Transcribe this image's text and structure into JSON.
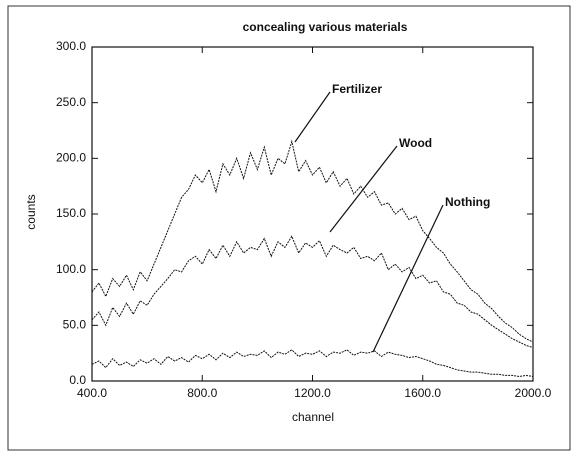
{
  "chart_data": {
    "type": "line",
    "title": "concealing various materials",
    "x_label": "channel",
    "y_label": "counts",
    "x": [
      400,
      425,
      450,
      475,
      500,
      525,
      550,
      575,
      600,
      625,
      650,
      675,
      700,
      725,
      750,
      775,
      800,
      825,
      850,
      875,
      900,
      925,
      950,
      975,
      1000,
      1025,
      1050,
      1075,
      1100,
      1125,
      1150,
      1175,
      1200,
      1225,
      1250,
      1275,
      1300,
      1325,
      1350,
      1375,
      1400,
      1425,
      1450,
      1475,
      1500,
      1525,
      1550,
      1575,
      1600,
      1625,
      1650,
      1675,
      1700,
      1725,
      1750,
      1775,
      1800,
      1825,
      1850,
      1875,
      1900,
      1925,
      1950,
      1975,
      2000
    ],
    "series": [
      {
        "name": "Fertilizer",
        "color": "#111111",
        "values": [
          80,
          88,
          76,
          92,
          85,
          95,
          82,
          98,
          90,
          105,
          120,
          135,
          150,
          165,
          172,
          185,
          178,
          190,
          170,
          195,
          185,
          200,
          182,
          205,
          190,
          210,
          185,
          200,
          195,
          215,
          188,
          198,
          185,
          192,
          178,
          188,
          175,
          182,
          168,
          175,
          165,
          170,
          158,
          160,
          150,
          155,
          145,
          148,
          135,
          128,
          120,
          115,
          105,
          98,
          90,
          82,
          78,
          70,
          65,
          58,
          52,
          48,
          42,
          38,
          35
        ]
      },
      {
        "name": "Wood",
        "color": "#111111",
        "values": [
          55,
          62,
          50,
          66,
          58,
          70,
          60,
          72,
          68,
          78,
          85,
          92,
          100,
          98,
          108,
          112,
          105,
          118,
          110,
          122,
          112,
          125,
          115,
          120,
          118,
          128,
          112,
          125,
          120,
          130,
          115,
          124,
          120,
          126,
          112,
          122,
          118,
          115,
          120,
          110,
          112,
          108,
          115,
          100,
          105,
          98,
          102,
          92,
          95,
          88,
          90,
          80,
          78,
          70,
          68,
          62,
          60,
          55,
          50,
          46,
          42,
          38,
          35,
          32,
          30
        ]
      },
      {
        "name": "Nothing",
        "color": "#111111",
        "values": [
          15,
          18,
          12,
          20,
          14,
          17,
          13,
          19,
          16,
          20,
          15,
          22,
          18,
          21,
          17,
          23,
          20,
          24,
          19,
          25,
          21,
          26,
          22,
          24,
          23,
          27,
          21,
          26,
          24,
          28,
          22,
          25,
          24,
          27,
          22,
          26,
          25,
          28,
          23,
          26,
          25,
          27,
          22,
          26,
          24,
          23,
          21,
          22,
          20,
          18,
          15,
          14,
          12,
          10,
          9,
          8,
          8,
          7,
          6,
          6,
          5,
          5,
          4,
          5,
          4
        ]
      }
    ],
    "xlim": [
      400,
      2000
    ],
    "xticks": [
      {
        "value": 400,
        "label": "400.0"
      },
      {
        "value": 800,
        "label": "800.0"
      },
      {
        "value": 1200,
        "label": "1200.0"
      },
      {
        "value": 1600,
        "label": "1600.0"
      },
      {
        "value": 2000,
        "label": "2000.0"
      }
    ],
    "ylim": [
      0,
      300
    ],
    "yticks": [
      {
        "value": 0,
        "label": "0.0"
      },
      {
        "value": 50,
        "label": "50.0"
      },
      {
        "value": 100,
        "label": "100.0"
      },
      {
        "value": 150,
        "label": "150.0"
      },
      {
        "value": 200,
        "label": "200.0"
      },
      {
        "value": 250,
        "label": "250.0"
      },
      {
        "value": 300,
        "label": "300.0"
      }
    ]
  }
}
